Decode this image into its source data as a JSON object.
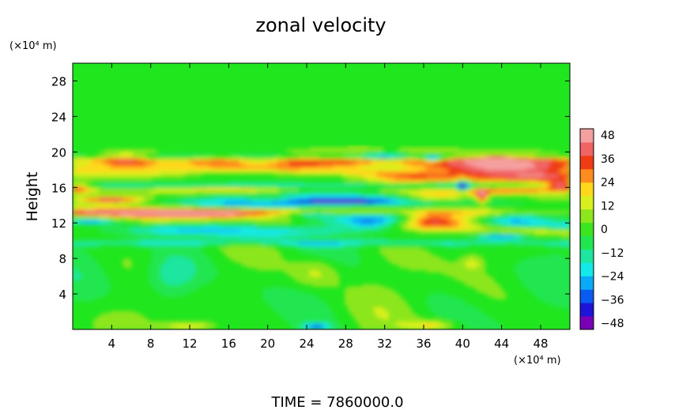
{
  "chart_data": {
    "type": "heatmap",
    "title": "zonal velocity",
    "ylabel": "Height",
    "y_unit": "(×10⁴ m)",
    "x_unit": "(×10⁴ m)",
    "x_range": [
      0,
      51
    ],
    "y_range": [
      0,
      30
    ],
    "x_ticks": [
      "4",
      "8",
      "12",
      "16",
      "20",
      "24",
      "28",
      "32",
      "36",
      "40",
      "44",
      "48"
    ],
    "y_ticks": [
      "4",
      "8",
      "12",
      "16",
      "20",
      "24",
      "28"
    ],
    "colorbar": {
      "range": [
        -48,
        48
      ],
      "labels": [
        "48",
        "36",
        "24",
        "12",
        "0",
        "−12",
        "−24",
        "−36",
        "−48"
      ],
      "colors": [
        "#7a00b8",
        "#1e14d8",
        "#0a5cf0",
        "#0aaaf8",
        "#14e8e8",
        "#1ee6a0",
        "#22e650",
        "#3ce61e",
        "#8ce61e",
        "#d8f01e",
        "#ffd81e",
        "#ff8c1e",
        "#f03c14",
        "#f06464",
        "#f5a0a0"
      ]
    },
    "field_summary": [
      {
        "band": "y 0–9",
        "value": "weak anomalies, about −12 to +12"
      },
      {
        "band": "y 9–11",
        "value": "about −12 to −18"
      },
      {
        "band": "y 11–20",
        "value": "alternating jets, about −36 to +40"
      },
      {
        "band": "y 20–30",
        "value": "about 0"
      }
    ],
    "footer": "TIME  =  7860000.0"
  }
}
